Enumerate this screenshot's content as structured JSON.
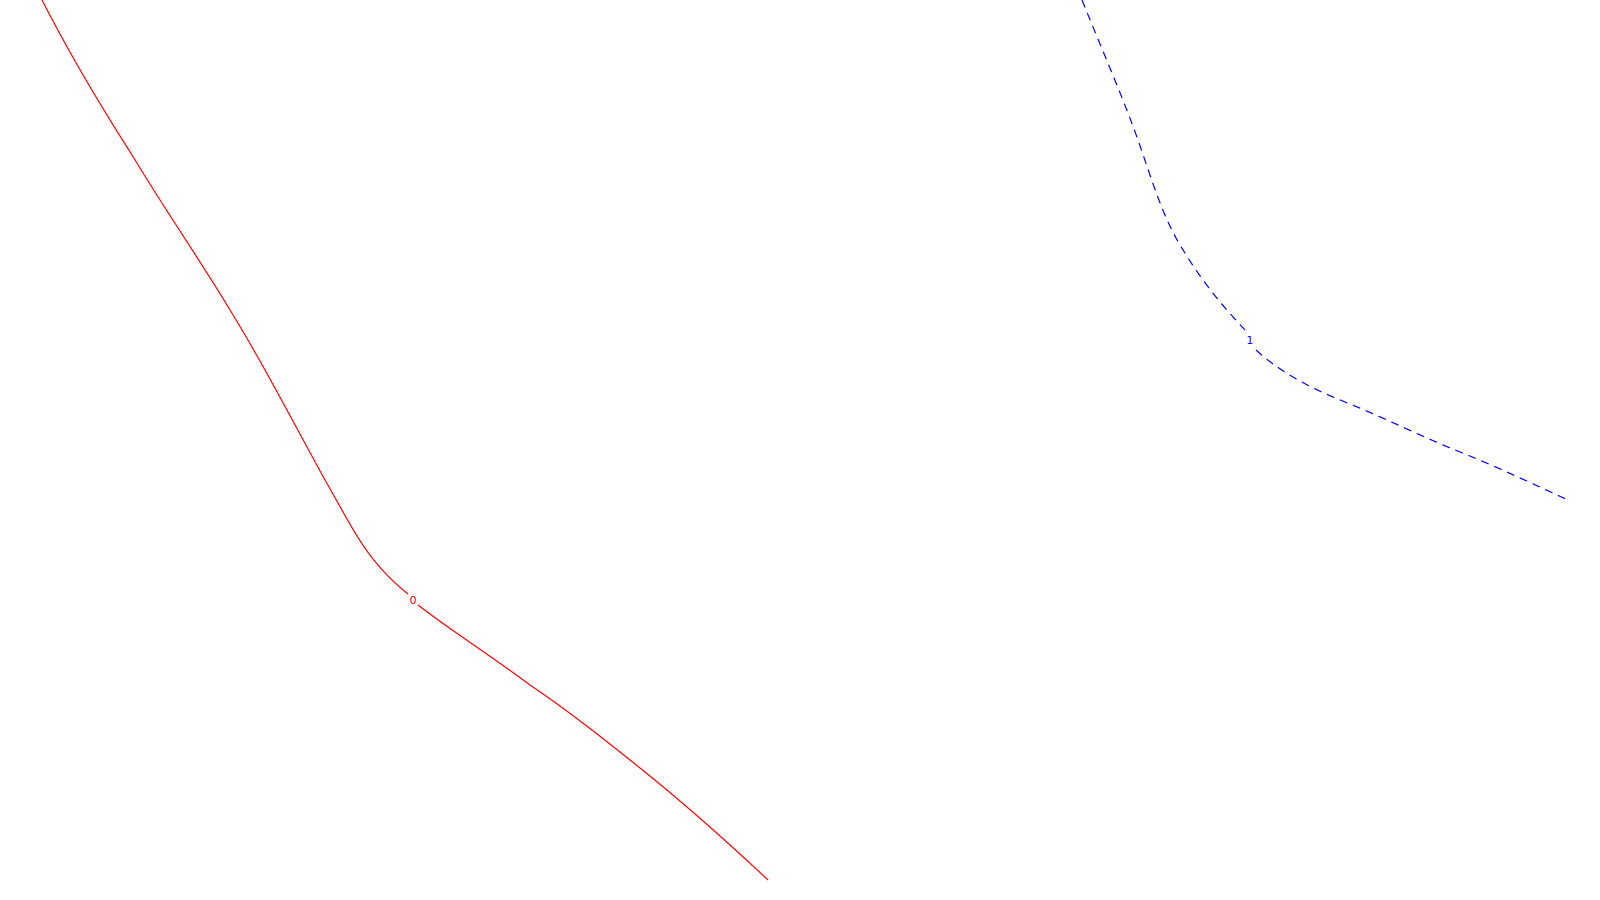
{
  "curves": [
    {
      "label": "0",
      "color": "#ff0000",
      "style": "solid"
    },
    {
      "label": "1",
      "color": "#0000ff",
      "style": "dashed"
    }
  ]
}
